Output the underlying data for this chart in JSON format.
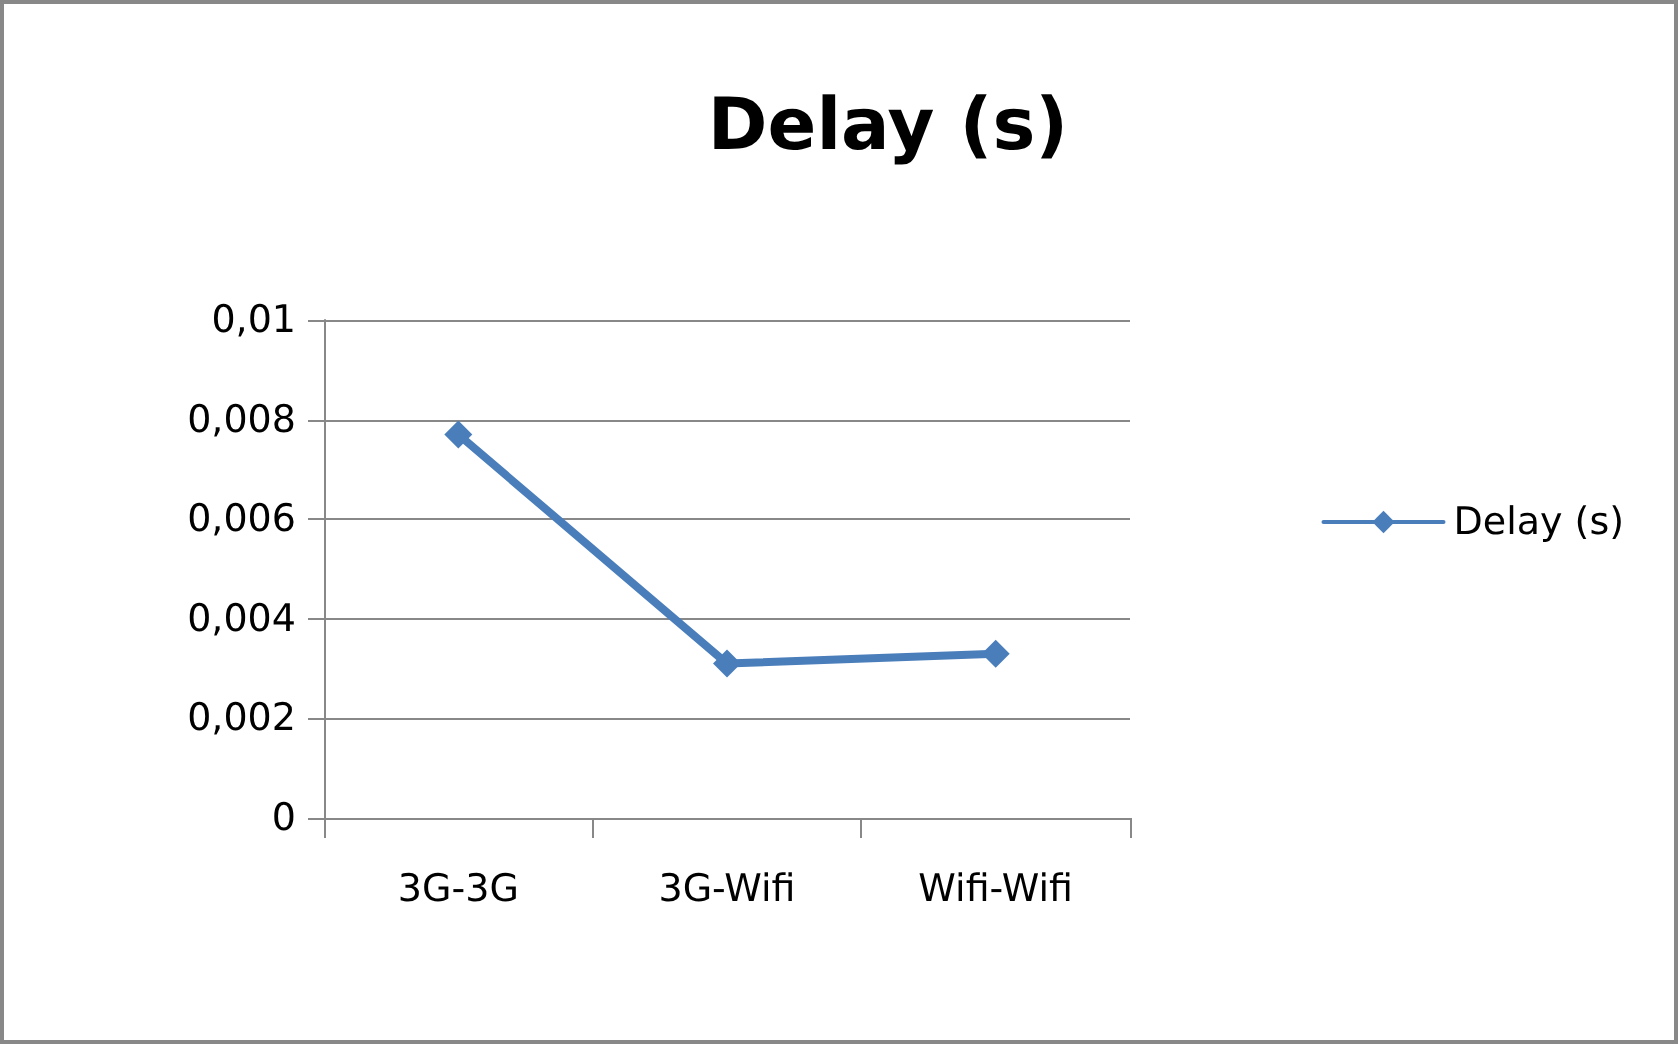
{
  "chart_data": {
    "type": "line",
    "title": "Delay (s)",
    "categories": [
      "3G-3G",
      "3G-Wifi",
      "Wifi-Wifi"
    ],
    "series": [
      {
        "name": "Delay (s)",
        "color": "#4a7ebb",
        "values": [
          0.0077,
          0.0031,
          0.0033
        ]
      }
    ],
    "ylim": [
      0,
      0.01
    ],
    "yticks": [
      0,
      {
        "value": 0.002,
        "label": "0,002"
      },
      {
        "value": 0.004,
        "label": "0,004"
      },
      {
        "value": 0.006,
        "label": "0,006"
      },
      {
        "value": 0.008,
        "label": "0,008"
      },
      {
        "value": 0.01,
        "label": "0,01"
      }
    ],
    "grid": "y",
    "legend": "right",
    "marker": "diamond",
    "line_style": "solid"
  }
}
